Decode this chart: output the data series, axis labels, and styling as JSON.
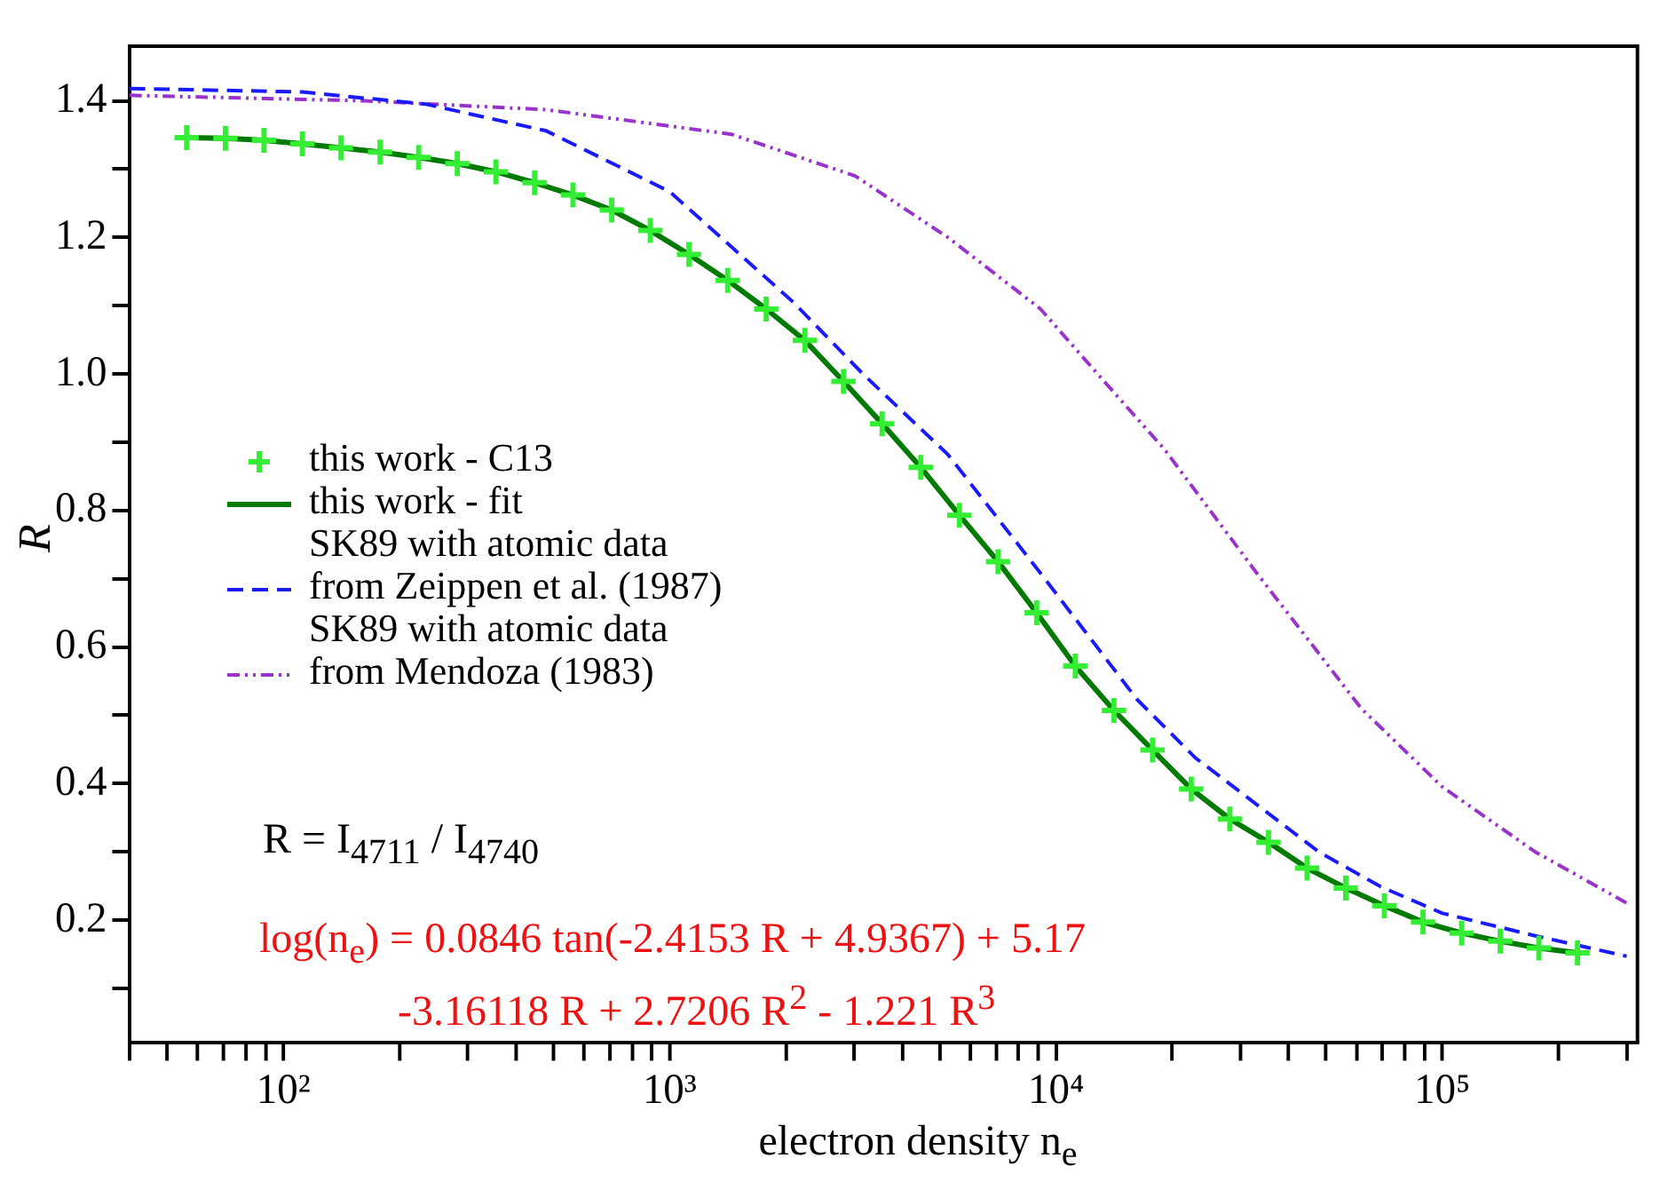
{
  "chart_data": {
    "type": "line",
    "xlabel": "electron density  n$_{e}$",
    "ylabel": "R",
    "log": "x",
    "xlim": [
      40,
      320000
    ],
    "ylim": [
      0.02,
      1.48
    ],
    "xticks": [
      {
        "value": 40,
        "label": null
      },
      {
        "value": 50,
        "label": null
      },
      {
        "value": 60,
        "label": null
      },
      {
        "value": 70,
        "label": null
      },
      {
        "value": 80,
        "label": null
      },
      {
        "value": 90,
        "label": null
      },
      {
        "value": 100,
        "label": "10²"
      },
      {
        "value": 200,
        "label": null
      },
      {
        "value": 300,
        "label": null
      },
      {
        "value": 400,
        "label": null
      },
      {
        "value": 500,
        "label": null
      },
      {
        "value": 600,
        "label": null
      },
      {
        "value": 700,
        "label": null
      },
      {
        "value": 800,
        "label": null
      },
      {
        "value": 900,
        "label": null
      },
      {
        "value": 1000,
        "label": "10³"
      },
      {
        "value": 2000,
        "label": null
      },
      {
        "value": 3000,
        "label": null
      },
      {
        "value": 4000,
        "label": null
      },
      {
        "value": 5000,
        "label": null
      },
      {
        "value": 6000,
        "label": null
      },
      {
        "value": 7000,
        "label": null
      },
      {
        "value": 8000,
        "label": null
      },
      {
        "value": 9000,
        "label": null
      },
      {
        "value": 10000,
        "label": "10⁴"
      },
      {
        "value": 20000,
        "label": null
      },
      {
        "value": 30000,
        "label": null
      },
      {
        "value": 40000,
        "label": null
      },
      {
        "value": 50000,
        "label": null
      },
      {
        "value": 60000,
        "label": null
      },
      {
        "value": 70000,
        "label": null
      },
      {
        "value": 80000,
        "label": null
      },
      {
        "value": 90000,
        "label": null
      },
      {
        "value": 100000,
        "label": "10⁵"
      },
      {
        "value": 200000,
        "label": null
      },
      {
        "value": 300000,
        "label": null
      }
    ],
    "yticks": [
      {
        "value": 0.1,
        "label": null
      },
      {
        "value": 0.2,
        "label": "0.2"
      },
      {
        "value": 0.3,
        "label": null
      },
      {
        "value": 0.4,
        "label": "0.4"
      },
      {
        "value": 0.5,
        "label": null
      },
      {
        "value": 0.6,
        "label": "0.6"
      },
      {
        "value": 0.7,
        "label": null
      },
      {
        "value": 0.8,
        "label": "0.8"
      },
      {
        "value": 0.9,
        "label": null
      },
      {
        "value": 1.0,
        "label": "1.0"
      },
      {
        "value": 1.1,
        "label": null
      },
      {
        "value": 1.2,
        "label": "1.2"
      },
      {
        "value": 1.3,
        "label": null
      },
      {
        "value": 1.4,
        "label": "1.4"
      }
    ],
    "grid": false,
    "legend": "left",
    "series": [
      {
        "name": "this work  - C13",
        "type": "scatter",
        "marker": "cross",
        "color": "#33ee33",
        "x": [
          56.2,
          70.8,
          89.1,
          112,
          141,
          178,
          224,
          282,
          355,
          447,
          562,
          708,
          891,
          1122,
          1413,
          1778,
          2239,
          2818,
          3548,
          4467,
          5623,
          7079,
          8913,
          11220,
          14125,
          17783,
          22387,
          28184,
          35481,
          44668,
          56234,
          70795,
          89125,
          112202,
          141254,
          177828,
          223872
        ],
        "values": [
          1.346,
          1.345,
          1.342,
          1.337,
          1.331,
          1.325,
          1.317,
          1.308,
          1.296,
          1.28,
          1.262,
          1.24,
          1.21,
          1.175,
          1.137,
          1.095,
          1.049,
          0.989,
          0.927,
          0.863,
          0.793,
          0.725,
          0.65,
          0.572,
          0.507,
          0.449,
          0.392,
          0.348,
          0.314,
          0.276,
          0.247,
          0.221,
          0.197,
          0.181,
          0.169,
          0.159,
          0.152
        ]
      },
      {
        "name": "this work  - fit",
        "type": "line",
        "line_style": "solid",
        "color": "#007a00",
        "x": [
          56.2,
          70.8,
          89.1,
          112,
          141,
          178,
          224,
          282,
          355,
          447,
          562,
          708,
          891,
          1122,
          1413,
          1778,
          2239,
          2818,
          3548,
          4467,
          5623,
          7079,
          8913,
          11220,
          14125,
          17783,
          22387,
          28184,
          35481,
          44668,
          56234,
          70795,
          89125,
          112202,
          141254,
          177828,
          223872
        ],
        "values": [
          1.346,
          1.345,
          1.342,
          1.337,
          1.331,
          1.325,
          1.317,
          1.308,
          1.296,
          1.28,
          1.262,
          1.24,
          1.21,
          1.175,
          1.137,
          1.095,
          1.049,
          0.989,
          0.927,
          0.863,
          0.793,
          0.725,
          0.65,
          0.572,
          0.507,
          0.449,
          0.392,
          0.348,
          0.314,
          0.276,
          0.247,
          0.221,
          0.197,
          0.181,
          0.169,
          0.159,
          0.152
        ]
      },
      {
        "name": "SK89 with atomic data\nfrom Zeippen et al. (1987)",
        "type": "line",
        "line_style": "dashed",
        "color": "#1a1aff",
        "x": [
          40,
          112,
          234,
          479,
          1000,
          2089,
          3162,
          5248,
          9120,
          16218,
          22909,
          33113,
          47863,
          69183,
          100000,
          173780,
          300000
        ],
        "values": [
          1.418,
          1.413,
          1.395,
          1.356,
          1.267,
          1.105,
          1.0,
          0.882,
          0.708,
          0.523,
          0.438,
          0.369,
          0.3,
          0.249,
          0.21,
          0.177,
          0.147
        ]
      },
      {
        "name": "SK89 with atomic data\nfrom Mendoza (1983)",
        "type": "line",
        "line_style": "dotted",
        "color": "#9933cc",
        "x": [
          40,
          162,
          479,
          1445,
          3020,
          5248,
          9120,
          13183,
          19055,
          33113,
          61660,
          100000,
          173780,
          300000
        ],
        "values": [
          1.408,
          1.4,
          1.387,
          1.351,
          1.29,
          1.2,
          1.095,
          0.992,
          0.89,
          0.708,
          0.51,
          0.395,
          0.3,
          0.225
        ]
      }
    ],
    "annotations": [
      "R = I$_{4711}$ / I$_{4740}$",
      "log(n$_{e}$) = 0.0846  tan(-2.4153 R + 4.9367) + 5.17",
      "-3.16118 R + 2.7206 R$^{2}$ - 1.221 R$^{3}$"
    ]
  }
}
